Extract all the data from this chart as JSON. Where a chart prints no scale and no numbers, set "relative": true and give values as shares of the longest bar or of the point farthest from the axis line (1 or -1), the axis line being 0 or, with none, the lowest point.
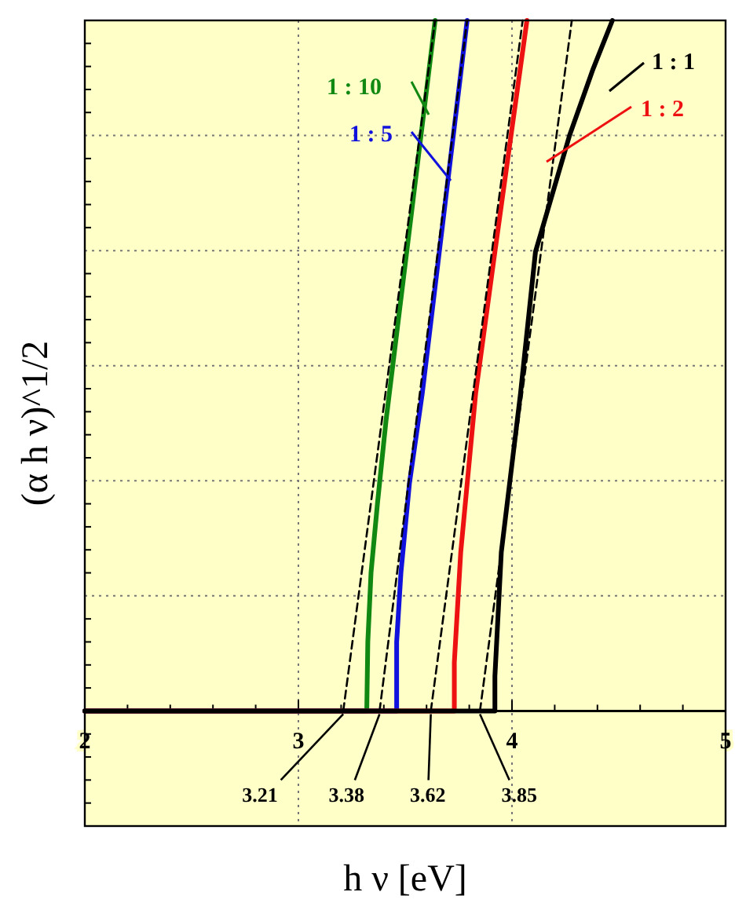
{
  "chart_data": {
    "type": "line",
    "relative": true,
    "xlabel": "h ν [eV]",
    "ylabel": "(α h ν)^1/2",
    "xlim": [
      2,
      5
    ],
    "xticks": [
      2,
      {
        "value": 2.2,
        "label": null
      },
      {
        "value": 2.4,
        "label": null
      },
      {
        "value": 2.6,
        "label": null
      },
      {
        "value": 2.8,
        "label": null
      },
      3,
      {
        "value": 3.2,
        "label": null
      },
      {
        "value": 3.4,
        "label": null
      },
      {
        "value": 3.6,
        "label": null
      },
      {
        "value": 3.8,
        "label": null
      },
      4,
      {
        "value": 4.2,
        "label": null
      },
      {
        "value": 4.4,
        "label": null
      },
      {
        "value": 4.6,
        "label": null
      },
      {
        "value": 4.8,
        "label": null
      },
      5
    ],
    "grid": true,
    "marker": "none",
    "series": [
      {
        "name": "1 : 1",
        "color": "#000000",
        "line_style": "solid",
        "x": [
          2,
          3.92,
          3.92,
          3.95,
          4.04,
          4.11,
          4.27,
          4.38,
          4.47
        ],
        "values": [
          0,
          0,
          0.05,
          0.23,
          0.46,
          0.665,
          0.834,
          0.93,
          1
        ]
      },
      {
        "name": "1 : 2",
        "color": "#ee1111",
        "line_style": "solid",
        "x": [
          2,
          3.73,
          3.73,
          3.76,
          3.83,
          3.92,
          4.07
        ],
        "values": [
          0,
          0,
          0.07,
          0.23,
          0.46,
          0.665,
          1
        ]
      },
      {
        "name": "1 : 5",
        "color": "#1111dd",
        "line_style": "solid",
        "x": [
          2,
          3.46,
          3.46,
          3.48,
          3.52,
          3.58,
          3.79
        ],
        "values": [
          0,
          0,
          0.1,
          0.2,
          0.33,
          0.46,
          1
        ]
      },
      {
        "name": "1 : 10",
        "color": "#118811",
        "line_style": "solid",
        "x": [
          2,
          3.32,
          3.325,
          3.34,
          3.37,
          3.41,
          3.64
        ],
        "values": [
          0,
          0,
          0.1,
          0.2,
          0.3,
          0.42,
          1
        ]
      },
      {
        "type": "line",
        "color": "#000000",
        "line_style": "dashed",
        "x": [
          3.21,
          3.64
        ],
        "values": [
          0,
          1
        ]
      },
      {
        "type": "line",
        "color": "#000000",
        "line_style": "dashed",
        "x": [
          3.38,
          3.79
        ],
        "values": [
          0,
          1
        ]
      },
      {
        "type": "line",
        "color": "#000000",
        "line_style": "dashed",
        "x": [
          3.62,
          4.05
        ],
        "values": [
          0,
          1
        ]
      },
      {
        "type": "line",
        "color": "#000000",
        "line_style": "dashed",
        "x": [
          3.85,
          4.28
        ],
        "values": [
          0,
          1
        ]
      }
    ],
    "annotations": [
      {
        "text": "3.21",
        "x": 3.21,
        "y": 0
      },
      {
        "text": "3.38",
        "x": 3.38,
        "y": 0
      },
      {
        "text": "3.62",
        "x": 3.62,
        "y": 0
      },
      {
        "text": "3.85",
        "x": 3.85,
        "y": 0
      }
    ]
  }
}
